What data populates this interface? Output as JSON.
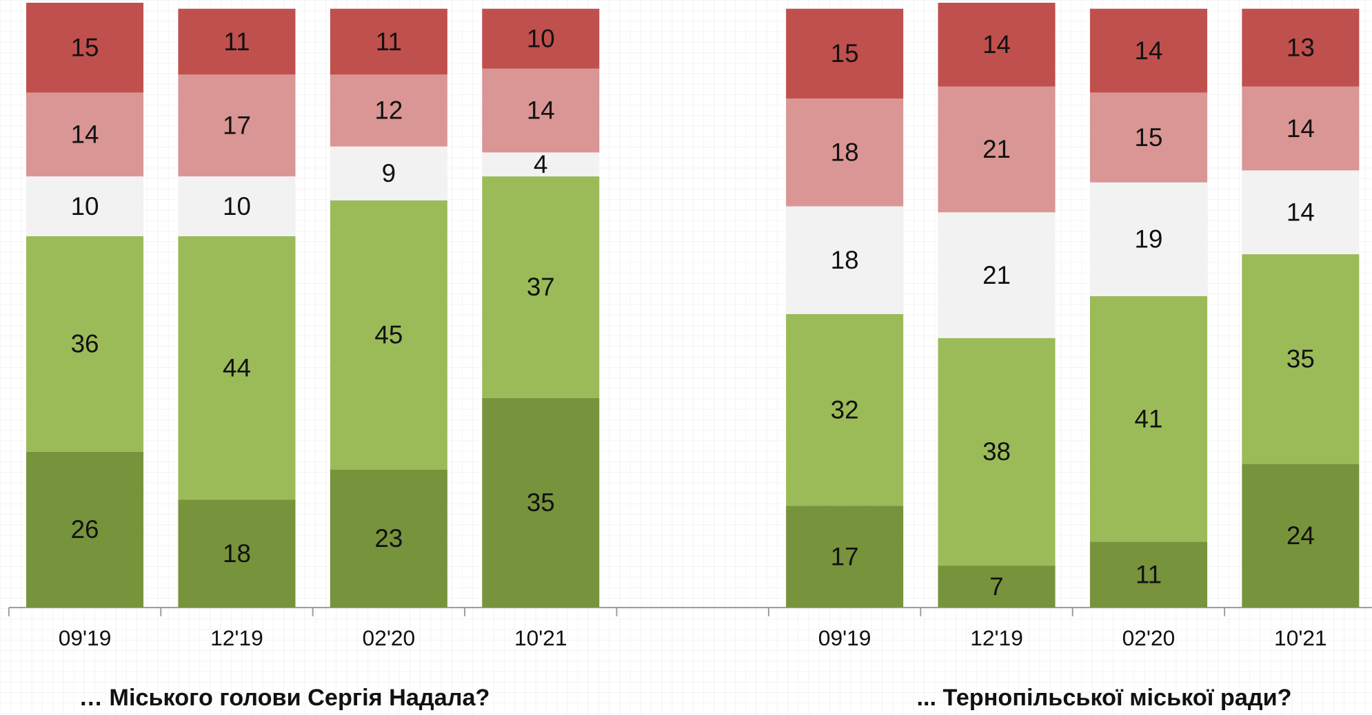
{
  "chart_data": {
    "type": "bar",
    "stacked": true,
    "categories": [
      "09'19",
      "12'19",
      "02'20",
      "10'21",
      null,
      "09'19",
      "12'19",
      "02'20",
      "10'21"
    ],
    "series": [
      {
        "color": "#77933c",
        "values": [
          26,
          18,
          23,
          35,
          null,
          17,
          7,
          11,
          24
        ]
      },
      {
        "color": "#9bbb59",
        "values": [
          36,
          44,
          45,
          37,
          null,
          32,
          38,
          41,
          35
        ]
      },
      {
        "color": "#f2f2f2",
        "values": [
          10,
          10,
          9,
          4,
          null,
          18,
          21,
          19,
          14
        ]
      },
      {
        "color": "#d99694",
        "values": [
          14,
          17,
          12,
          14,
          null,
          18,
          21,
          15,
          14
        ]
      },
      {
        "color": "#c0504d",
        "values": [
          15,
          11,
          11,
          10,
          null,
          15,
          14,
          14,
          13
        ]
      }
    ],
    "ylim": [
      0,
      100
    ],
    "annotations": [
      "… Міського голови Сергія Надала?",
      "... Тернопільської міської ради?"
    ]
  }
}
